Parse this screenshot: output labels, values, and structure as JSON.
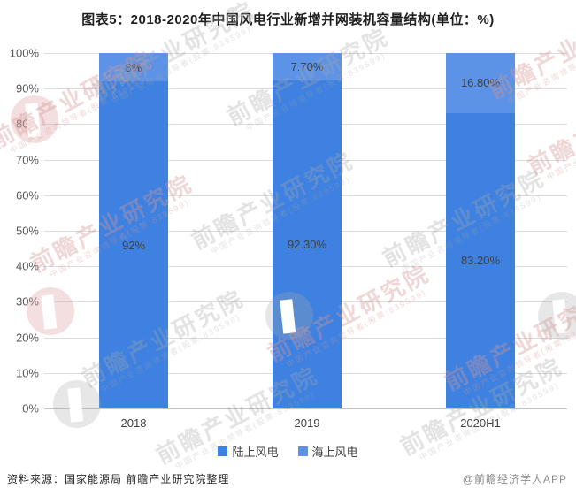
{
  "title": "图表5：2018-2020年中国风电行业新增并网装机容量结构(单位：%)",
  "chart_data": {
    "type": "bar",
    "stacked": true,
    "title": "图表5：2018-2020年中国风电行业新增并网装机容量结构(单位：%)",
    "categories": [
      "2018",
      "2019",
      "2020H1"
    ],
    "series": [
      {
        "name": "陆上风电",
        "values": [
          92,
          92.3,
          83.2
        ],
        "labels": [
          "92%",
          "92.30%",
          "83.20%"
        ],
        "color": "#3E81E0"
      },
      {
        "name": "海上风电",
        "values": [
          8,
          7.7,
          16.8
        ],
        "labels": [
          "8%",
          "7.70%",
          "16.80%"
        ],
        "color": "#5C93E6"
      }
    ],
    "ylabel": "",
    "xlabel": "",
    "ylim": [
      0,
      100
    ],
    "ytick_step": 10,
    "ytick_labels": [
      "0%",
      "10%",
      "20%",
      "30%",
      "40%",
      "50%",
      "60%",
      "70%",
      "80%",
      "90%",
      "100%"
    ],
    "grid": true,
    "legend_position": "bottom"
  },
  "legend": {
    "items": [
      {
        "label": "陆上风电",
        "color": "#3E81E0"
      },
      {
        "label": "海上风电",
        "color": "#5C93E6"
      }
    ]
  },
  "footer": {
    "source": "资料来源：国家能源局 前瞻产业研究院整理",
    "credit": "@前瞻经济学人APP"
  },
  "watermark": {
    "text": "前瞻产业研究院",
    "subtext": "中国产业咨询领导者(股票:839599)"
  },
  "colors": {
    "onshore": "#3E81E0",
    "offshore": "#5C93E6",
    "gridline": "#dcdcdc",
    "axis_line": "#c2c2c2",
    "bar_label": "#404040",
    "tick_label": "#595959"
  }
}
